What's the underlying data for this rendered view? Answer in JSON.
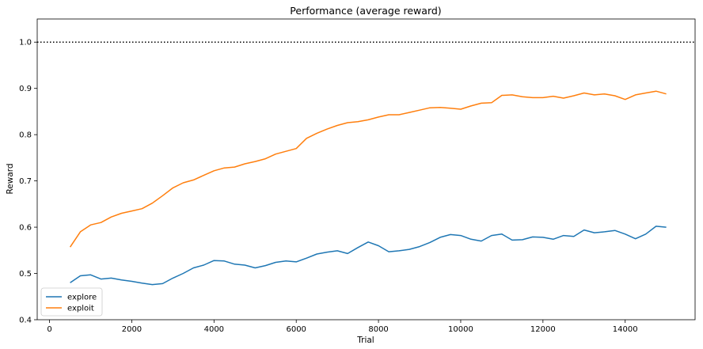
{
  "chart_data": {
    "type": "line",
    "title": "Performance (average reward)",
    "xlabel": "Trial",
    "ylabel": "Reward",
    "xlim": [
      -300,
      15700
    ],
    "ylim": [
      0.4,
      1.05
    ],
    "xticks": [
      0,
      2000,
      4000,
      6000,
      8000,
      10000,
      12000,
      14000
    ],
    "yticks": [
      0.4,
      0.5,
      0.6,
      0.7,
      0.8,
      0.9,
      1.0
    ],
    "xtick_labels": [
      "0",
      "2000",
      "4000",
      "6000",
      "8000",
      "10000",
      "12000",
      "14000"
    ],
    "ytick_labels": [
      "0.4",
      "0.5",
      "0.6",
      "0.7",
      "0.8",
      "0.9",
      "1.0"
    ],
    "reference_line": {
      "y": 1.0,
      "style": "dotted",
      "color": "#000000"
    },
    "grid": false,
    "legend_position": "lower-left",
    "series": [
      {
        "name": "explore",
        "color": "#1f77b4",
        "x": [
          500,
          750,
          1000,
          1250,
          1500,
          1750,
          2000,
          2250,
          2500,
          2750,
          3000,
          3250,
          3500,
          3750,
          4000,
          4250,
          4500,
          4750,
          5000,
          5250,
          5500,
          5750,
          6000,
          6250,
          6500,
          6750,
          7000,
          7250,
          7500,
          7750,
          8000,
          8250,
          8500,
          8750,
          9000,
          9250,
          9500,
          9750,
          10000,
          10250,
          10500,
          10750,
          11000,
          11250,
          11500,
          11750,
          12000,
          12250,
          12500,
          12750,
          13000,
          13250,
          13500,
          13750,
          14000,
          14250,
          14500,
          14750,
          15000
        ],
        "y": [
          0.48,
          0.495,
          0.497,
          0.488,
          0.49,
          0.486,
          0.483,
          0.479,
          0.476,
          0.478,
          0.49,
          0.5,
          0.512,
          0.518,
          0.528,
          0.527,
          0.52,
          0.518,
          0.512,
          0.517,
          0.524,
          0.527,
          0.525,
          0.533,
          0.542,
          0.546,
          0.549,
          0.543,
          0.556,
          0.568,
          0.56,
          0.547,
          0.549,
          0.552,
          0.558,
          0.567,
          0.578,
          0.584,
          0.582,
          0.574,
          0.57,
          0.582,
          0.585,
          0.572,
          0.573,
          0.579,
          0.578,
          0.574,
          0.582,
          0.58,
          0.594,
          0.588,
          0.59,
          0.593,
          0.585,
          0.575,
          0.585,
          0.602,
          0.6
        ]
      },
      {
        "name": "exploit",
        "color": "#ff7f0e",
        "x": [
          500,
          750,
          1000,
          1250,
          1500,
          1750,
          2000,
          2250,
          2500,
          2750,
          3000,
          3250,
          3500,
          3750,
          4000,
          4250,
          4500,
          4750,
          5000,
          5250,
          5500,
          5750,
          6000,
          6250,
          6500,
          6750,
          7000,
          7250,
          7500,
          7750,
          8000,
          8250,
          8500,
          8750,
          9000,
          9250,
          9500,
          9750,
          10000,
          10250,
          10500,
          10750,
          11000,
          11250,
          11500,
          11750,
          12000,
          12250,
          12500,
          12750,
          13000,
          13250,
          13500,
          13750,
          14000,
          14250,
          14500,
          14750,
          15000
        ],
        "y": [
          0.557,
          0.59,
          0.605,
          0.61,
          0.622,
          0.63,
          0.635,
          0.64,
          0.652,
          0.668,
          0.685,
          0.696,
          0.702,
          0.712,
          0.722,
          0.728,
          0.73,
          0.737,
          0.742,
          0.748,
          0.758,
          0.764,
          0.77,
          0.792,
          0.803,
          0.812,
          0.82,
          0.826,
          0.828,
          0.832,
          0.838,
          0.843,
          0.843,
          0.848,
          0.853,
          0.858,
          0.859,
          0.857,
          0.855,
          0.862,
          0.868,
          0.869,
          0.885,
          0.886,
          0.882,
          0.88,
          0.88,
          0.883,
          0.879,
          0.884,
          0.89,
          0.886,
          0.888,
          0.884,
          0.876,
          0.886,
          0.89,
          0.894,
          0.888
        ]
      }
    ]
  }
}
